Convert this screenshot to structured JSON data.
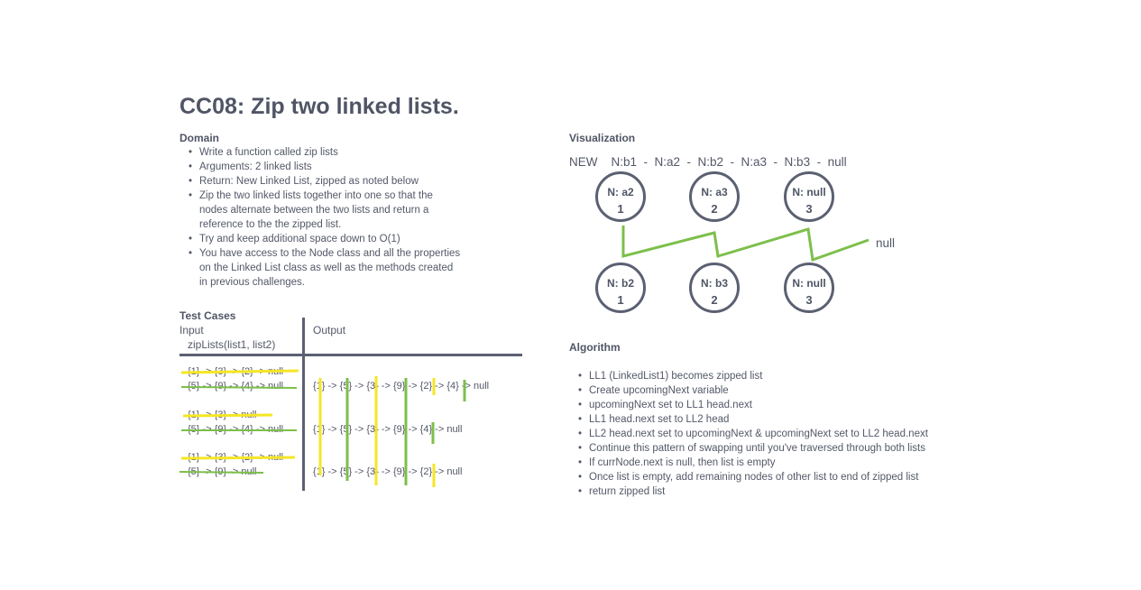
{
  "title": "CC08: Zip two linked lists.",
  "domain": {
    "label": "Domain",
    "items": [
      "Write a function called zip lists",
      "Arguments: 2 linked lists",
      "Return: New Linked List, zipped as noted below",
      "Zip the two linked lists together into one so that the nodes alternate between the two lists and return a reference to the the zipped list.",
      "Try and keep additional space down to O(1)",
      "You have access to the Node class and all the properties on the Linked List class as well as the methods created in previous challenges."
    ]
  },
  "test_cases": {
    "label": "Test Cases",
    "input_header": "Input",
    "input_sub": "zipLists(list1, list2)",
    "output_header": "Output",
    "rows": [
      {
        "list1": "{1} -> {3} -> {2} -> null",
        "list2": "{5} -> {9} -> {4} -> null",
        "output": "{1} -> {5} -> {3} -> {9} -> {2} -> {4} -> null"
      },
      {
        "list1": "{1} -> {3} -> null",
        "list2": "{5} -> {9} -> {4} -> null",
        "output": "{1} -> {5} -> {3} -> {9} -> {4} -> null"
      },
      {
        "list1": "{1} -> {3} -> {2} -> null",
        "list2": "{5} -> {9} -> null",
        "output": "{1} -> {5} -> {3} -> {9} -> {2} -> null"
      }
    ]
  },
  "visualization": {
    "label": "Visualization",
    "sequence": "NEW    N:b1  -  N:a2  -  N:b2  -  N:a3  -  N:b3  -  null",
    "top_nodes": [
      {
        "label": "N: a2",
        "index": "1"
      },
      {
        "label": "N: a3",
        "index": "2"
      },
      {
        "label": "N: null",
        "index": "3"
      }
    ],
    "bottom_nodes": [
      {
        "label": "N: b2",
        "index": "1"
      },
      {
        "label": "N: b3",
        "index": "2"
      },
      {
        "label": "N: null",
        "index": "3"
      }
    ],
    "tail_label": "null"
  },
  "algorithm": {
    "label": "Algorithm",
    "items": [
      "LL1 (LinkedList1) becomes zipped list",
      "Create upcomingNext variable",
      "upcomingNext set to LL1 head.next",
      "LL1 head.next set to LL2 head",
      "LL2 head.next set to upcomingNext & upcomingNext set to LL2 head.next",
      "Continue this pattern of swapping until you've traversed through both lists",
      "If currNode.next is null, then list is empty",
      "Once list is empty, add remaining nodes of other list to end of zipped list",
      "return zipped list"
    ]
  },
  "colors": {
    "yellow": "#f5e625",
    "green": "#7cbf4a",
    "ink": "#5b6072"
  }
}
